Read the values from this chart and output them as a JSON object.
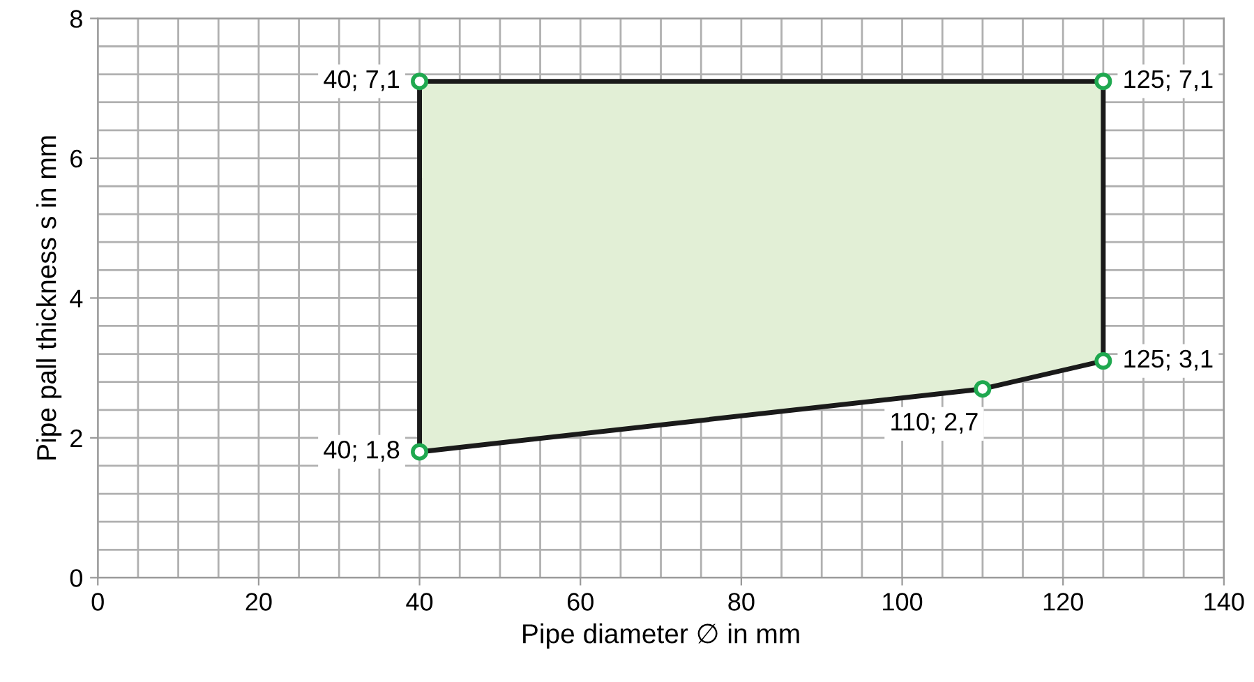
{
  "chart_data": {
    "type": "area",
    "xlabel": "Pipe diameter ∅ in mm",
    "ylabel": "Pipe pall thickness s in mm",
    "x": [
      40,
      40,
      110,
      125,
      125
    ],
    "series": [
      {
        "color": "#e2efd6",
        "values": [
          7.1,
          1.8,
          2.7,
          3.1,
          7.1
        ],
        "value_labels": [
          "40; 7,1",
          "40; 1,8",
          "110; 2,7",
          "125; 3,1",
          "125; 7,1"
        ]
      }
    ],
    "xlim": [
      0,
      140
    ],
    "ylim": [
      0,
      8
    ],
    "xticks": [
      0,
      {
        "value": 5,
        "label": null
      },
      {
        "value": 10,
        "label": null
      },
      {
        "value": 15,
        "label": null
      },
      20,
      {
        "value": 25,
        "label": null
      },
      {
        "value": 30,
        "label": null
      },
      {
        "value": 35,
        "label": null
      },
      40,
      {
        "value": 45,
        "label": null
      },
      {
        "value": 50,
        "label": null
      },
      {
        "value": 55,
        "label": null
      },
      60,
      {
        "value": 65,
        "label": null
      },
      {
        "value": 70,
        "label": null
      },
      {
        "value": 75,
        "label": null
      },
      80,
      {
        "value": 85,
        "label": null
      },
      {
        "value": 90,
        "label": null
      },
      {
        "value": 95,
        "label": null
      },
      100,
      {
        "value": 105,
        "label": null
      },
      {
        "value": 110,
        "label": null
      },
      {
        "value": 115,
        "label": null
      },
      120,
      {
        "value": 125,
        "label": null
      },
      {
        "value": 130,
        "label": null
      },
      {
        "value": 135,
        "label": null
      },
      140
    ],
    "yticks": [
      0,
      {
        "value": 0.4,
        "label": null
      },
      {
        "value": 0.8,
        "label": null
      },
      {
        "value": 1.2,
        "label": null
      },
      {
        "value": 1.6,
        "label": null
      },
      2,
      {
        "value": 2.4,
        "label": null
      },
      {
        "value": 2.8,
        "label": null
      },
      {
        "value": 3.2,
        "label": null
      },
      {
        "value": 3.6,
        "label": null
      },
      4,
      {
        "value": 4.4,
        "label": null
      },
      {
        "value": 4.8,
        "label": null
      },
      {
        "value": 5.2,
        "label": null
      },
      {
        "value": 5.6,
        "label": null
      },
      6,
      {
        "value": 6.4,
        "label": null
      },
      {
        "value": 6.8,
        "label": null
      },
      {
        "value": 7.2,
        "label": null
      },
      {
        "value": 7.6,
        "label": null
      },
      8
    ],
    "grid": true,
    "marker": "circle",
    "line_style": "solid"
  }
}
